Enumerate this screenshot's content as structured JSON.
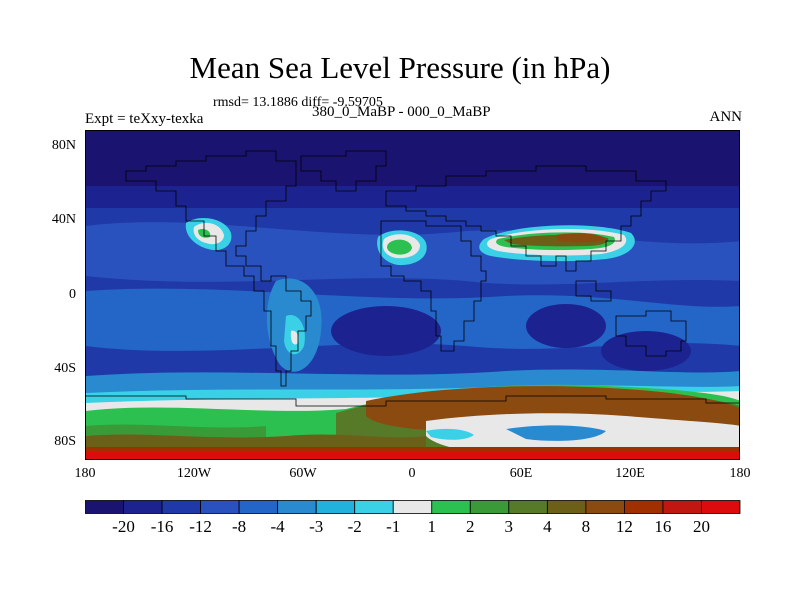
{
  "header": {
    "title": "Mean Sea Level Pressure (in hPa)",
    "stats": "rmsd= 13.1886 diff= -9.59705",
    "expt": "Expt = teXxy-texka",
    "comparison": "380_0_MaBP - 000_0_MaBP",
    "season": "ANN"
  },
  "axes": {
    "lat_labels": [
      "80N",
      "40N",
      "0",
      "40S",
      "80S"
    ],
    "lon_labels": [
      "180",
      "120W",
      "60W",
      "0",
      "60E",
      "120E",
      "180"
    ]
  },
  "colorbar": {
    "colors": [
      "#1a1470",
      "#1c2390",
      "#1f3aa8",
      "#2a52be",
      "#2466c8",
      "#2a8ad0",
      "#22b0dc",
      "#3ad0e6",
      "#e8e8e8",
      "#2cc050",
      "#3a9a38",
      "#567a28",
      "#6c6018",
      "#8a4a10",
      "#a03000",
      "#c01810",
      "#dc0c0c"
    ],
    "labels": [
      "-20",
      "-16",
      "-12",
      "-8",
      "-4",
      "-3",
      "-2",
      "-1",
      "1",
      "2",
      "3",
      "4",
      "8",
      "12",
      "16",
      "20"
    ]
  }
}
